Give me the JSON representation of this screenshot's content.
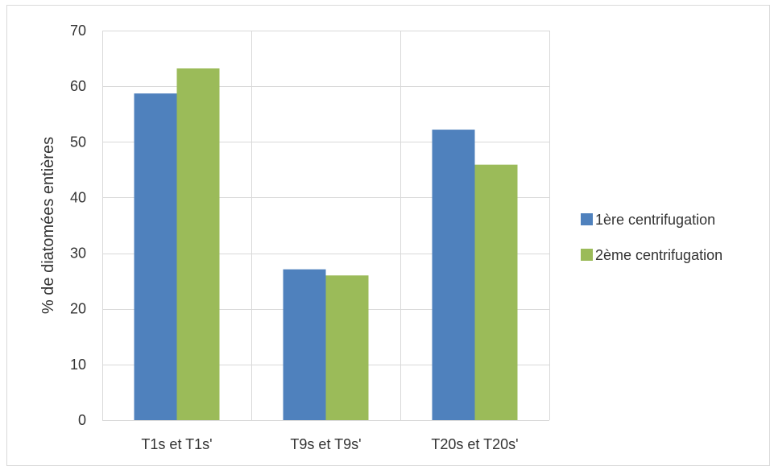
{
  "chart_data": {
    "type": "bar",
    "categories": [
      "T1s et T1s'",
      "T9s et T9s'",
      "T20s et T20s'"
    ],
    "series": [
      {
        "name": "1ère centrifugation",
        "values": [
          58.7,
          27.1,
          52.2
        ],
        "color": "#4F81BD"
      },
      {
        "name": "2ème centrifugation",
        "values": [
          63.2,
          26.0,
          45.9
        ],
        "color": "#9BBB59"
      }
    ],
    "title": "",
    "xlabel": "",
    "ylabel": "% de diatomées entières",
    "ylim": [
      0,
      70
    ],
    "yticks": [
      0,
      10,
      20,
      30,
      40,
      50,
      60,
      70
    ],
    "grid": true,
    "legend_position": "right"
  }
}
